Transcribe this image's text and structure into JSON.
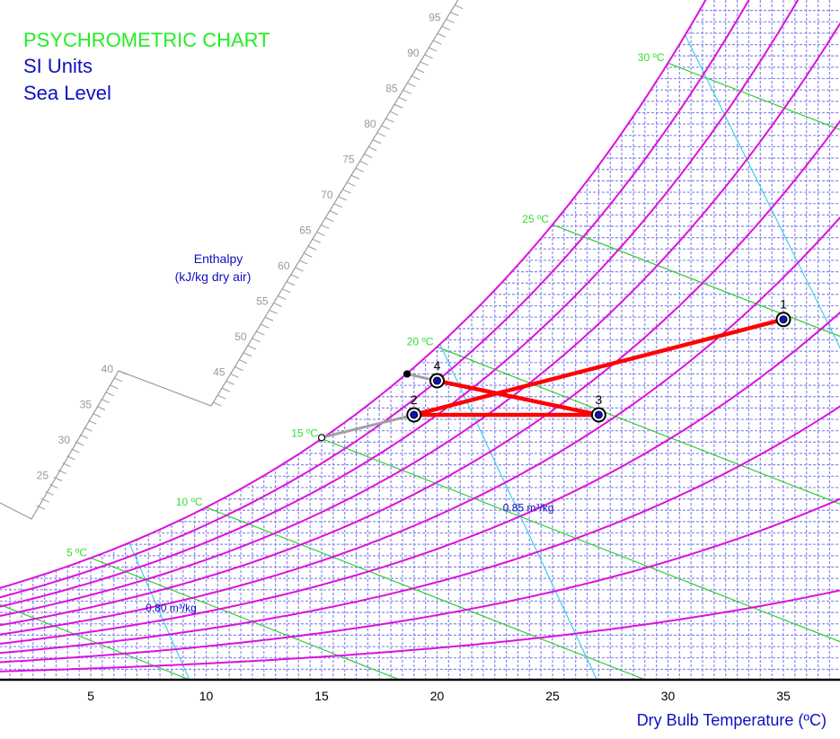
{
  "chart_data": {
    "type": "line",
    "title": "PSYCHROMETRIC CHART",
    "subtitle_lines": [
      "SI Units",
      "Sea Level"
    ],
    "xlabel": "Dry Bulb Temperature (ºC)",
    "x_ticks": [
      5,
      10,
      15,
      20,
      25,
      30,
      35
    ],
    "x_tick_labels": [
      "5",
      "10",
      "15",
      "20",
      "25",
      "30",
      "35"
    ],
    "xlim": [
      1,
      37.5
    ],
    "ylim_humidity_ratio_g_per_kg": [
      0,
      30
    ],
    "grid": true,
    "relative_humidity_curves_percent": [
      10,
      20,
      30,
      40,
      50,
      60,
      70,
      80,
      90,
      100
    ],
    "wet_bulb_lines_c": [
      0,
      5,
      10,
      15,
      20,
      25,
      30
    ],
    "wet_bulb_labels": [
      "5 ºC",
      "10 ºC",
      "15 ºC",
      "20 ºC",
      "25 ºC",
      "30 ºC"
    ],
    "wet_bulb_label_values": [
      5,
      10,
      15,
      20,
      25,
      30
    ],
    "specific_volume_lines": [
      0.8,
      0.85,
      0.9
    ],
    "specific_volume_labels": [
      {
        "v": 0.8,
        "text": "0.80 m³/kg"
      },
      {
        "v": 0.85,
        "text": "0.85 m³/kg"
      }
    ],
    "enthalpy_scale": {
      "title": "Enthalpy",
      "units": "(kJ/kg dry air)",
      "labels_low": [
        "25",
        "30",
        "35",
        "40"
      ],
      "labels_high": [
        "45",
        "50",
        "55",
        "60",
        "65",
        "70",
        "75",
        "80",
        "85",
        "90",
        "95"
      ]
    },
    "state_points": [
      {
        "label": "1",
        "t": 35.0,
        "w": 15.9
      },
      {
        "label": "2",
        "t": 19.0,
        "w": 11.7
      },
      {
        "label": "3",
        "t": 27.0,
        "w": 11.7
      },
      {
        "label": "4",
        "t": 20.0,
        "w": 13.2
      }
    ],
    "process_lines": [
      [
        "1",
        "2"
      ],
      [
        "2",
        "3"
      ],
      [
        "3",
        "4"
      ]
    ],
    "auxiliary_lines": [
      {
        "from": {
          "t": 15.0,
          "w": 10.7
        },
        "to": {
          "t": 19.0,
          "w": 11.7
        }
      },
      {
        "from": {
          "t": 18.7,
          "w": 13.5
        },
        "to": {
          "t": 20.0,
          "w": 13.2
        }
      }
    ],
    "colors": {
      "title": "#22ee22",
      "subtitle": "#1010c0",
      "rh": "#dd11dd",
      "wet_bulb": "#33cc33",
      "volume": "#44ccee",
      "grid": "#8888ee",
      "process": "#ff0000",
      "aux": "#a0a0a0",
      "enthalpy": "#999999"
    }
  }
}
